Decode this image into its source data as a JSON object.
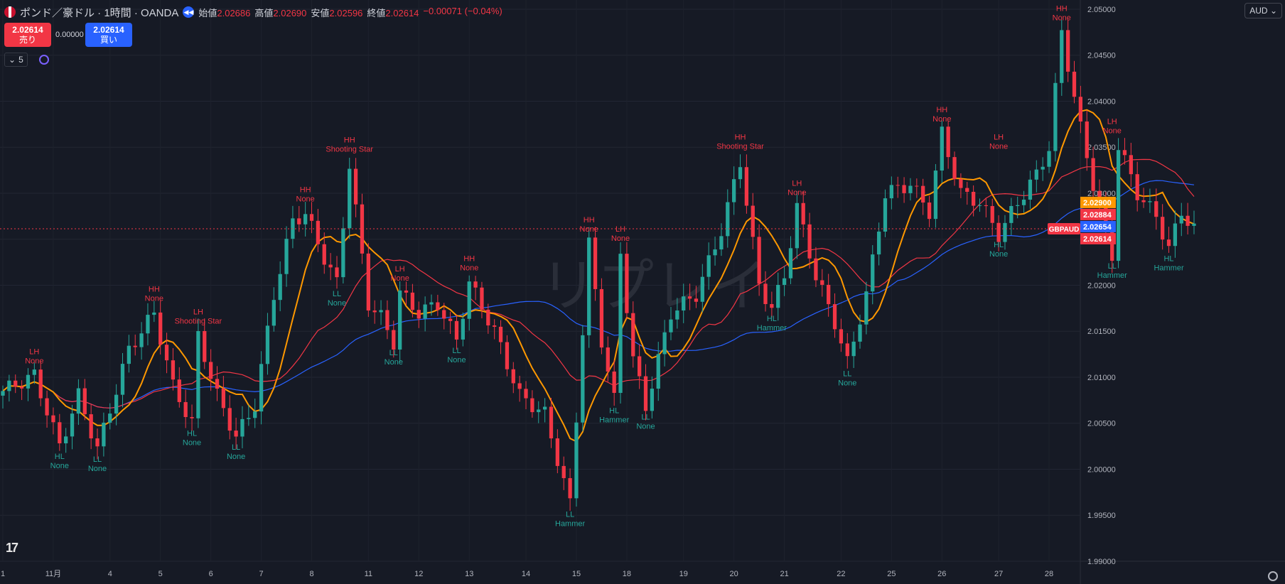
{
  "header": {
    "title": "ポンド／豪ドル · 1時間 · OANDA",
    "open_label": "始値",
    "open": "2.02686",
    "high_label": "高値",
    "high": "2.02690",
    "low_label": "安値",
    "low": "2.02596",
    "close_label": "終値",
    "close": "2.02614",
    "change": "−0.00071 (−0.04%)"
  },
  "trade": {
    "sell_price": "2.02614",
    "sell_label": "売り",
    "spread": "0.00000",
    "buy_price": "2.02614",
    "buy_label": "買い"
  },
  "indicator_count": "5",
  "currency": "AUD",
  "watermark": "リプレイ",
  "symbol_tag": "GBPAUD",
  "colors": {
    "up": "#26a69a",
    "down": "#f23645",
    "ma_orange": "#ff9800",
    "ma_red": "#f23645",
    "ma_blue": "#2962ff"
  },
  "chart_data": {
    "type": "candlestick",
    "ylim": [
      1.99,
      2.051
    ],
    "y_ticks": [
      2.05,
      2.045,
      2.04,
      2.035,
      2.03,
      2.025,
      2.02,
      2.015,
      2.01,
      2.005,
      2.0,
      1.995,
      1.99
    ],
    "x_ticks": [
      "1",
      "11月",
      "4",
      "5",
      "6",
      "7",
      "8",
      "11",
      "12",
      "13",
      "14",
      "15",
      "18",
      "19",
      "20",
      "21",
      "22",
      "25",
      "26",
      "27",
      "28"
    ],
    "swing_points": [
      {
        "i": 5,
        "price": 2.0102,
        "top": "LH",
        "bottom": "None",
        "kind": "high"
      },
      {
        "i": 9,
        "price": 2.0025,
        "top": "HL",
        "bottom": "None",
        "kind": "low"
      },
      {
        "i": 15,
        "price": 2.0022,
        "top": "LL",
        "bottom": "None",
        "kind": "low"
      },
      {
        "i": 24,
        "price": 2.017,
        "top": "HH",
        "bottom": "None",
        "kind": "high"
      },
      {
        "i": 31,
        "price": 2.0145,
        "top": "LH",
        "bottom": "Shooting Star",
        "kind": "high"
      },
      {
        "i": 30,
        "price": 2.005,
        "top": "HL",
        "bottom": "None",
        "kind": "low"
      },
      {
        "i": 37,
        "price": 2.0035,
        "top": "LL",
        "bottom": "None",
        "kind": "low"
      },
      {
        "i": 48,
        "price": 2.0278,
        "top": "HH",
        "bottom": "None",
        "kind": "high"
      },
      {
        "i": 55,
        "price": 2.0332,
        "top": "HH",
        "bottom": "Shooting Star",
        "kind": "high"
      },
      {
        "i": 53,
        "price": 2.0202,
        "top": "LL",
        "bottom": "None",
        "kind": "low"
      },
      {
        "i": 63,
        "price": 2.0192,
        "top": "LH",
        "bottom": "None",
        "kind": "high"
      },
      {
        "i": 62,
        "price": 2.0138,
        "top": "LL",
        "bottom": "None",
        "kind": "low"
      },
      {
        "i": 72,
        "price": 2.014,
        "top": "LL",
        "bottom": "None",
        "kind": "low"
      },
      {
        "i": 74,
        "price": 2.0203,
        "top": "HH",
        "bottom": "None",
        "kind": "high"
      },
      {
        "i": 90,
        "price": 1.9962,
        "top": "LL",
        "bottom": "Hammer",
        "kind": "low"
      },
      {
        "i": 93,
        "price": 2.0245,
        "top": "HH",
        "bottom": "None",
        "kind": "high"
      },
      {
        "i": 98,
        "price": 2.0235,
        "top": "LH",
        "bottom": "None",
        "kind": "high"
      },
      {
        "i": 97,
        "price": 2.0075,
        "top": "HL",
        "bottom": "Hammer",
        "kind": "low"
      },
      {
        "i": 102,
        "price": 2.0068,
        "top": "LL",
        "bottom": "None",
        "kind": "low"
      },
      {
        "i": 117,
        "price": 2.0335,
        "top": "HH",
        "bottom": "Shooting Star",
        "kind": "high"
      },
      {
        "i": 122,
        "price": 2.0175,
        "top": "HL",
        "bottom": "Hammer",
        "kind": "low"
      },
      {
        "i": 126,
        "price": 2.0285,
        "top": "LH",
        "bottom": "None",
        "kind": "high"
      },
      {
        "i": 134,
        "price": 2.0115,
        "top": "LL",
        "bottom": "None",
        "kind": "low"
      },
      {
        "i": 149,
        "price": 2.0365,
        "top": "HH",
        "bottom": "None",
        "kind": "high"
      },
      {
        "i": 158,
        "price": 2.0335,
        "top": "LH",
        "bottom": "None",
        "kind": "high"
      },
      {
        "i": 158,
        "price": 2.0255,
        "top": "HL",
        "bottom": "None",
        "kind": "low"
      },
      {
        "i": 168,
        "price": 2.0475,
        "top": "HH",
        "bottom": "None",
        "kind": "high"
      },
      {
        "i": 176,
        "price": 2.0352,
        "top": "LH",
        "bottom": "None",
        "kind": "high"
      },
      {
        "i": 176,
        "price": 2.0232,
        "top": "LL",
        "bottom": "Hammer",
        "kind": "low"
      },
      {
        "i": 185,
        "price": 2.024,
        "top": "HL",
        "bottom": "Hammer",
        "kind": "low"
      }
    ],
    "price_tags": [
      {
        "value": "2.02900",
        "price": 2.029,
        "color": "#ff9800"
      },
      {
        "value": "2.02884",
        "price": 2.02884,
        "color": "#f23645"
      },
      {
        "value": "2.02654",
        "price": 2.02654,
        "color": "#2962ff"
      },
      {
        "value": "2.02614",
        "price": 2.02614,
        "color": "#f23645"
      }
    ],
    "current_price": 2.02614
  }
}
